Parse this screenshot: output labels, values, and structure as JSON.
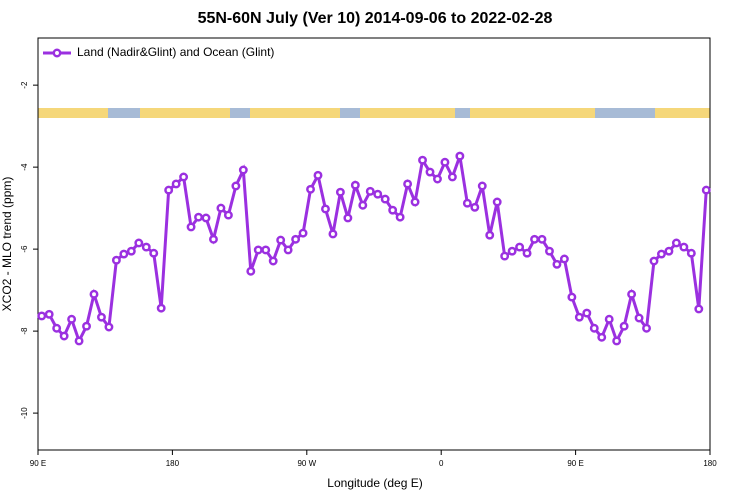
{
  "chart_data": {
    "type": "line",
    "title": "55N-60N July (Ver 10)   2014-09-06 to 2022-02-28",
    "x_label": "Longitude (deg E)",
    "y_label": "XCO2 - MLO trend (ppm)",
    "x": [
      92.5,
      97.5,
      102.5,
      107.5,
      112.5,
      117.5,
      122.5,
      127.5,
      132.5,
      137.5,
      142.5,
      147.5,
      152.5,
      157.5,
      162.5,
      167.5,
      172.5,
      177.5,
      182.5,
      187.5,
      192.5,
      197.5,
      202.5,
      207.5,
      212.5,
      217.5,
      222.5,
      227.5,
      232.5,
      237.5,
      242.5,
      247.5,
      252.5,
      257.5,
      262.5,
      267.5,
      272.5,
      277.5,
      282.5,
      287.5,
      292.5,
      297.5,
      302.5,
      307.5,
      312.5,
      317.5,
      322.5,
      327.5,
      332.5,
      337.5,
      342.5,
      347.5,
      352.5,
      357.5,
      362.5,
      367.5,
      372.5,
      377.5,
      382.5,
      387.5,
      392.5,
      397.5,
      402.5,
      407.5,
      412.5,
      417.5,
      422.5,
      427.5,
      432.5,
      437.5,
      442.5,
      447.5,
      452.5,
      457.5,
      462.5,
      467.5,
      472.5,
      477.5,
      482.5,
      487.5,
      492.5,
      497.5,
      502.5,
      507.5,
      512.5,
      517.5,
      522.5,
      527.5,
      532.5,
      537.5
    ],
    "series": [
      {
        "name": "Land (Nadir&Glint) and Ocean (Glint)",
        "color": "#9b30e0",
        "values": [
          -7.63,
          -7.59,
          -7.93,
          -8.12,
          -7.71,
          -8.24,
          -7.88,
          -7.1,
          -7.66,
          -7.9,
          -6.27,
          -6.12,
          -6.05,
          -5.85,
          -5.95,
          -6.1,
          -7.44,
          -4.56,
          -4.41,
          -4.24,
          -5.46,
          -5.22,
          -5.24,
          -5.76,
          -5.0,
          -5.17,
          -4.46,
          -4.07,
          -6.54,
          -6.02,
          -6.02,
          -6.29,
          -5.78,
          -6.02,
          -5.76,
          -5.61,
          -4.54,
          -4.2,
          -5.02,
          -5.63,
          -4.61,
          -5.24,
          -4.44,
          -4.93,
          -4.59,
          -4.66,
          -4.78,
          -5.05,
          -5.22,
          -4.41,
          -4.85,
          -3.83,
          -4.12,
          -4.29,
          -3.88,
          -4.24,
          -3.73,
          -4.88,
          -4.98,
          -4.46,
          -5.66,
          -4.85,
          -6.17,
          -6.05,
          -5.95,
          -6.1,
          -5.76,
          -5.76,
          -6.05,
          -6.37,
          -6.24,
          -7.17,
          -7.66,
          -7.56,
          -7.93,
          -8.15,
          -7.71,
          -8.24,
          -7.88,
          -7.1,
          -7.68,
          -7.93,
          -6.29,
          -6.12,
          -6.05,
          -5.85,
          -5.95,
          -6.1,
          -7.46,
          -4.56
        ]
      }
    ],
    "xlim": [
      90,
      540
    ],
    "xticks": [
      {
        "value": 90,
        "label": "90 E"
      },
      180,
      {
        "value": 270,
        "label": "90 W"
      },
      {
        "value": 360,
        "label": "0"
      },
      {
        "value": 450,
        "label": "90 E"
      },
      {
        "value": 540,
        "label": "180"
      }
    ],
    "ylim": [
      -10.9,
      -0.85
    ],
    "yticks": [
      -10,
      -8,
      -6,
      -4,
      -2
    ],
    "legend": "top-left",
    "grid": false
  }
}
